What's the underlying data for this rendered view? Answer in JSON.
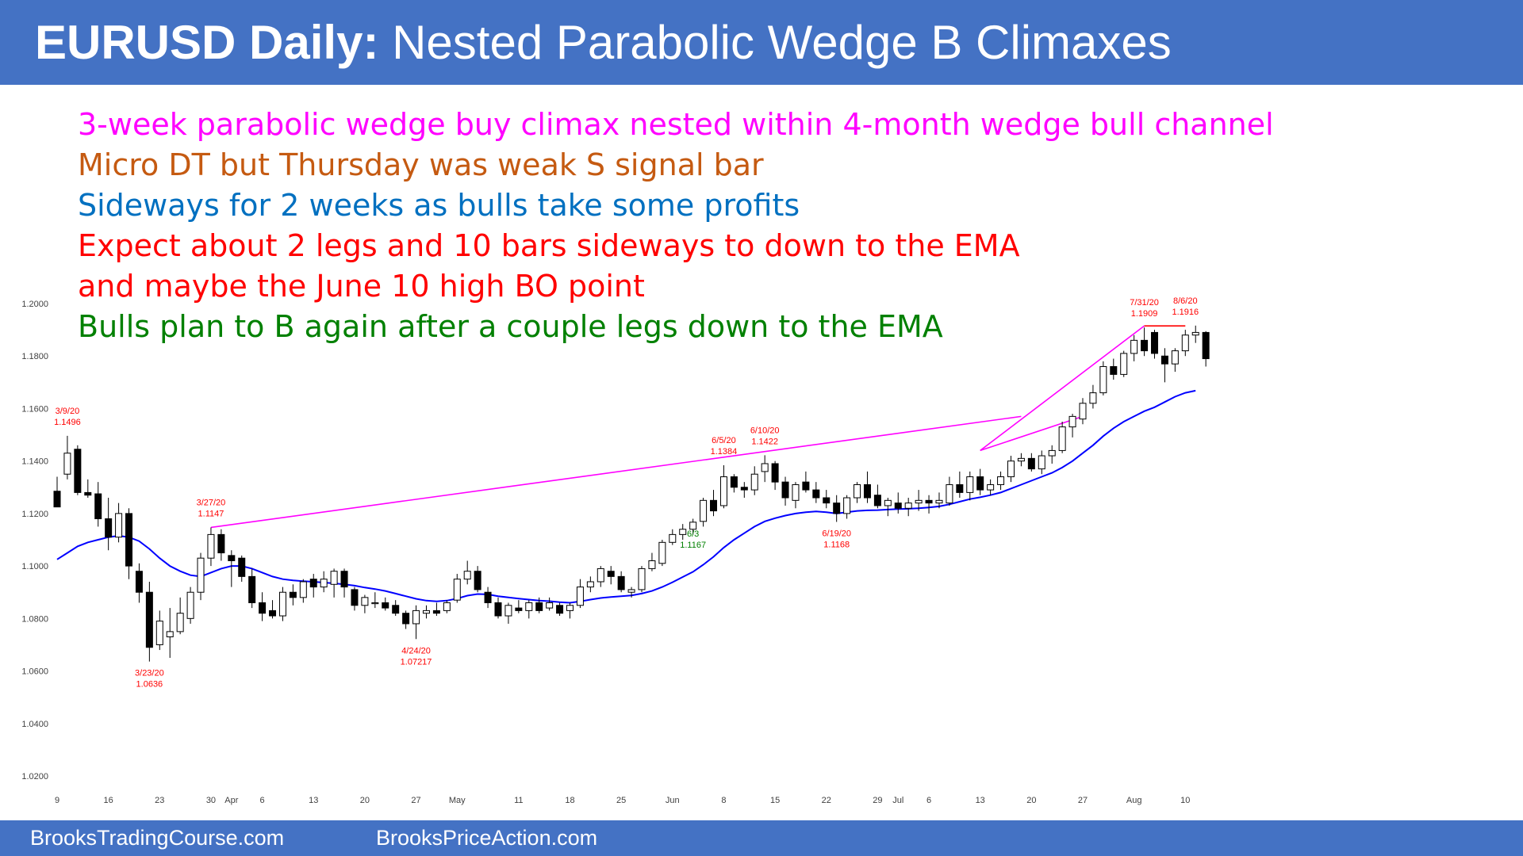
{
  "header": {
    "title_bold": "EURUSD Daily:",
    "title_rest": " Nested Parabolic Wedge B Climaxes",
    "background": "#4472c4"
  },
  "notes": [
    {
      "text": "3-week parabolic wedge buy climax nested within 4-month wedge bull channel",
      "color": "#ff00ff"
    },
    {
      "text": "Micro DT but Thursday was weak S signal bar",
      "color": "#c55a11"
    },
    {
      "text": "Sideways for 2 weeks as bulls take some profits",
      "color": "#0070c0"
    },
    {
      "text": "Expect about 2 legs and 10 bars sideways to down to the EMA",
      "color": "#ff0000"
    },
    {
      "text": "and maybe the June 10 high BO point",
      "color": "#ff0000"
    },
    {
      "text": "Bulls plan to B again after a couple legs down to the EMA",
      "color": "#008000"
    }
  ],
  "footer": {
    "left": "BrooksTradingCourse.com",
    "right": "BrooksPriceAction.com"
  },
  "chart_data": {
    "type": "candlestick",
    "ylim": [
      1.02,
      1.2
    ],
    "y_ticks": [
      "1.2000",
      "1.1800",
      "1.1600",
      "1.1400",
      "1.1200",
      "1.1000",
      "1.0800",
      "1.0600",
      "1.0400",
      "1.0200"
    ],
    "x_ticks": [
      {
        "label": "9",
        "bar": 0
      },
      {
        "label": "16",
        "bar": 5
      },
      {
        "label": "23",
        "bar": 10
      },
      {
        "label": "30",
        "bar": 15
      },
      {
        "label": "Apr",
        "bar": 17
      },
      {
        "label": "6",
        "bar": 20
      },
      {
        "label": "13",
        "bar": 25
      },
      {
        "label": "20",
        "bar": 30
      },
      {
        "label": "27",
        "bar": 35
      },
      {
        "label": "May",
        "bar": 39
      },
      {
        "label": "11",
        "bar": 45
      },
      {
        "label": "18",
        "bar": 50
      },
      {
        "label": "25",
        "bar": 55
      },
      {
        "label": "Jun",
        "bar": 60
      },
      {
        "label": "8",
        "bar": 65
      },
      {
        "label": "15",
        "bar": 70
      },
      {
        "label": "22",
        "bar": 75
      },
      {
        "label": "29",
        "bar": 80
      },
      {
        "label": "Jul",
        "bar": 82
      },
      {
        "label": "6",
        "bar": 85
      },
      {
        "label": "13",
        "bar": 90
      },
      {
        "label": "20",
        "bar": 95
      },
      {
        "label": "27",
        "bar": 100
      },
      {
        "label": "Aug",
        "bar": 105
      },
      {
        "label": "10",
        "bar": 110
      }
    ],
    "candles": [
      [
        1.1285,
        1.134,
        1.1225,
        1.1225
      ],
      [
        1.135,
        1.1496,
        1.133,
        1.143
      ],
      [
        1.1445,
        1.146,
        1.127,
        1.128
      ],
      [
        1.128,
        1.133,
        1.126,
        1.127
      ],
      [
        1.1275,
        1.132,
        1.115,
        1.118
      ],
      [
        1.118,
        1.126,
        1.106,
        1.111
      ],
      [
        1.111,
        1.124,
        1.109,
        1.12
      ],
      [
        1.12,
        1.122,
        1.095,
        1.1
      ],
      [
        1.098,
        1.101,
        1.086,
        1.09
      ],
      [
        1.09,
        1.094,
        1.0636,
        1.069
      ],
      [
        1.07,
        1.083,
        1.068,
        1.079
      ],
      [
        1.073,
        1.084,
        1.065,
        1.075
      ],
      [
        1.075,
        1.088,
        1.074,
        1.082
      ],
      [
        1.08,
        1.092,
        1.078,
        1.09
      ],
      [
        1.09,
        1.105,
        1.087,
        1.103
      ],
      [
        1.103,
        1.1147,
        1.1,
        1.112
      ],
      [
        1.112,
        1.114,
        1.102,
        1.105
      ],
      [
        1.104,
        1.106,
        1.092,
        1.102
      ],
      [
        1.103,
        1.104,
        1.094,
        1.096
      ],
      [
        1.096,
        1.099,
        1.084,
        1.086
      ],
      [
        1.086,
        1.09,
        1.079,
        1.082
      ],
      [
        1.083,
        1.087,
        1.08,
        1.081
      ],
      [
        1.081,
        1.092,
        1.079,
        1.09
      ],
      [
        1.09,
        1.093,
        1.085,
        1.088
      ],
      [
        1.088,
        1.095,
        1.086,
        1.094
      ],
      [
        1.095,
        1.097,
        1.088,
        1.092
      ],
      [
        1.092,
        1.098,
        1.09,
        1.095
      ],
      [
        1.093,
        1.099,
        1.088,
        1.098
      ],
      [
        1.098,
        1.099,
        1.088,
        1.092
      ],
      [
        1.091,
        1.092,
        1.083,
        1.085
      ],
      [
        1.085,
        1.089,
        1.082,
        1.088
      ],
      [
        1.086,
        1.09,
        1.084,
        1.086
      ],
      [
        1.086,
        1.088,
        1.083,
        1.084
      ],
      [
        1.085,
        1.087,
        1.081,
        1.082
      ],
      [
        1.082,
        1.083,
        1.076,
        1.078
      ],
      [
        1.078,
        1.085,
        1.07217,
        1.083
      ],
      [
        1.082,
        1.085,
        1.08,
        1.083
      ],
      [
        1.083,
        1.086,
        1.081,
        1.082
      ],
      [
        1.083,
        1.087,
        1.082,
        1.086
      ],
      [
        1.087,
        1.097,
        1.086,
        1.095
      ],
      [
        1.095,
        1.102,
        1.093,
        1.098
      ],
      [
        1.098,
        1.1,
        1.09,
        1.091
      ],
      [
        1.09,
        1.092,
        1.084,
        1.086
      ],
      [
        1.086,
        1.088,
        1.08,
        1.081
      ],
      [
        1.081,
        1.086,
        1.078,
        1.085
      ],
      [
        1.084,
        1.087,
        1.082,
        1.083
      ],
      [
        1.083,
        1.087,
        1.08,
        1.086
      ],
      [
        1.086,
        1.088,
        1.082,
        1.083
      ],
      [
        1.084,
        1.088,
        1.083,
        1.086
      ],
      [
        1.085,
        1.086,
        1.081,
        1.082
      ],
      [
        1.083,
        1.086,
        1.08,
        1.085
      ],
      [
        1.085,
        1.095,
        1.084,
        1.092
      ],
      [
        1.092,
        1.096,
        1.09,
        1.094
      ],
      [
        1.094,
        1.1,
        1.092,
        1.099
      ],
      [
        1.098,
        1.1,
        1.093,
        1.096
      ],
      [
        1.096,
        1.098,
        1.09,
        1.091
      ],
      [
        1.09,
        1.092,
        1.088,
        1.091
      ],
      [
        1.091,
        1.1,
        1.09,
        1.099
      ],
      [
        1.099,
        1.105,
        1.098,
        1.102
      ],
      [
        1.101,
        1.11,
        1.1,
        1.109
      ],
      [
        1.109,
        1.114,
        1.108,
        1.112
      ],
      [
        1.112,
        1.116,
        1.11,
        1.114
      ],
      [
        1.114,
        1.118,
        1.112,
        1.1167
      ],
      [
        1.117,
        1.126,
        1.115,
        1.125
      ],
      [
        1.125,
        1.129,
        1.119,
        1.121
      ],
      [
        1.123,
        1.1384,
        1.122,
        1.134
      ],
      [
        1.134,
        1.135,
        1.128,
        1.13
      ],
      [
        1.13,
        1.132,
        1.126,
        1.129
      ],
      [
        1.129,
        1.138,
        1.127,
        1.135
      ],
      [
        1.136,
        1.1422,
        1.132,
        1.139
      ],
      [
        1.139,
        1.14,
        1.129,
        1.132
      ],
      [
        1.132,
        1.134,
        1.123,
        1.126
      ],
      [
        1.125,
        1.132,
        1.122,
        1.131
      ],
      [
        1.132,
        1.136,
        1.128,
        1.129
      ],
      [
        1.129,
        1.132,
        1.124,
        1.126
      ],
      [
        1.126,
        1.129,
        1.122,
        1.124
      ],
      [
        1.124,
        1.127,
        1.1168,
        1.12
      ],
      [
        1.12,
        1.127,
        1.118,
        1.126
      ],
      [
        1.126,
        1.132,
        1.124,
        1.131
      ],
      [
        1.131,
        1.136,
        1.124,
        1.126
      ],
      [
        1.127,
        1.131,
        1.122,
        1.123
      ],
      [
        1.123,
        1.126,
        1.119,
        1.125
      ],
      [
        1.124,
        1.128,
        1.12,
        1.122
      ],
      [
        1.122,
        1.126,
        1.119,
        1.124
      ],
      [
        1.124,
        1.129,
        1.121,
        1.125
      ],
      [
        1.125,
        1.127,
        1.12,
        1.124
      ],
      [
        1.124,
        1.128,
        1.122,
        1.125
      ],
      [
        1.124,
        1.134,
        1.123,
        1.131
      ],
      [
        1.131,
        1.136,
        1.126,
        1.128
      ],
      [
        1.128,
        1.136,
        1.125,
        1.134
      ],
      [
        1.134,
        1.137,
        1.127,
        1.129
      ],
      [
        1.129,
        1.133,
        1.127,
        1.131
      ],
      [
        1.131,
        1.136,
        1.129,
        1.134
      ],
      [
        1.134,
        1.142,
        1.132,
        1.14
      ],
      [
        1.14,
        1.143,
        1.138,
        1.141
      ],
      [
        1.141,
        1.143,
        1.136,
        1.137
      ],
      [
        1.137,
        1.144,
        1.135,
        1.142
      ],
      [
        1.142,
        1.146,
        1.139,
        1.144
      ],
      [
        1.144,
        1.155,
        1.143,
        1.153
      ],
      [
        1.153,
        1.158,
        1.149,
        1.157
      ],
      [
        1.156,
        1.164,
        1.154,
        1.162
      ],
      [
        1.162,
        1.169,
        1.16,
        1.166
      ],
      [
        1.166,
        1.178,
        1.165,
        1.176
      ],
      [
        1.176,
        1.179,
        1.171,
        1.173
      ],
      [
        1.173,
        1.182,
        1.172,
        1.181
      ],
      [
        1.181,
        1.188,
        1.178,
        1.186
      ],
      [
        1.186,
        1.1909,
        1.18,
        1.182
      ],
      [
        1.189,
        1.19,
        1.179,
        1.181
      ],
      [
        1.18,
        1.183,
        1.17,
        1.177
      ],
      [
        1.177,
        1.183,
        1.174,
        1.182
      ],
      [
        1.182,
        1.19,
        1.18,
        1.188
      ],
      [
        1.188,
        1.1916,
        1.185,
        1.189
      ],
      [
        1.189,
        1.1895,
        1.176,
        1.179
      ]
    ],
    "ema": [
      [
        0,
        1.1025
      ],
      [
        1,
        1.105
      ],
      [
        2,
        1.1075
      ],
      [
        3,
        1.109
      ],
      [
        4,
        1.11
      ],
      [
        5,
        1.111
      ],
      [
        6,
        1.1115
      ],
      [
        7,
        1.111
      ],
      [
        8,
        1.1095
      ],
      [
        9,
        1.1065
      ],
      [
        10,
        1.103
      ],
      [
        11,
        1.1
      ],
      [
        12,
        1.098
      ],
      [
        13,
        1.0965
      ],
      [
        14,
        1.096
      ],
      [
        15,
        1.0975
      ],
      [
        16,
        1.099
      ],
      [
        17,
        1.1
      ],
      [
        18,
        1.1
      ],
      [
        19,
        1.099
      ],
      [
        20,
        1.0975
      ],
      [
        21,
        1.096
      ],
      [
        22,
        1.095
      ],
      [
        23,
        1.0945
      ],
      [
        24,
        1.0942
      ],
      [
        25,
        1.094
      ],
      [
        26,
        1.0937
      ],
      [
        27,
        1.0934
      ],
      [
        28,
        1.093
      ],
      [
        29,
        1.0925
      ],
      [
        30,
        1.0918
      ],
      [
        31,
        1.0912
      ],
      [
        32,
        1.0905
      ],
      [
        33,
        1.0895
      ],
      [
        34,
        1.0885
      ],
      [
        35,
        1.0875
      ],
      [
        36,
        1.0868
      ],
      [
        37,
        1.0865
      ],
      [
        38,
        1.0868
      ],
      [
        39,
        1.0876
      ],
      [
        40,
        1.0887
      ],
      [
        41,
        1.0893
      ],
      [
        42,
        1.0892
      ],
      [
        43,
        1.0885
      ],
      [
        44,
        1.088
      ],
      [
        45,
        1.0876
      ],
      [
        46,
        1.0872
      ],
      [
        47,
        1.0868
      ],
      [
        48,
        1.0866
      ],
      [
        49,
        1.0862
      ],
      [
        50,
        1.086
      ],
      [
        51,
        1.0865
      ],
      [
        52,
        1.0872
      ],
      [
        53,
        1.0878
      ],
      [
        54,
        1.0882
      ],
      [
        55,
        1.0885
      ],
      [
        56,
        1.0888
      ],
      [
        57,
        1.0895
      ],
      [
        58,
        1.0905
      ],
      [
        59,
        1.092
      ],
      [
        60,
        1.0938
      ],
      [
        61,
        1.0958
      ],
      [
        62,
        1.0978
      ],
      [
        63,
        1.1005
      ],
      [
        64,
        1.1035
      ],
      [
        65,
        1.107
      ],
      [
        66,
        1.11
      ],
      [
        67,
        1.1125
      ],
      [
        68,
        1.115
      ],
      [
        69,
        1.117
      ],
      [
        70,
        1.1182
      ],
      [
        71,
        1.1192
      ],
      [
        72,
        1.12
      ],
      [
        73,
        1.1205
      ],
      [
        74,
        1.1208
      ],
      [
        75,
        1.1205
      ],
      [
        76,
        1.12
      ],
      [
        77,
        1.1205
      ],
      [
        78,
        1.121
      ],
      [
        79,
        1.1212
      ],
      [
        80,
        1.1213
      ],
      [
        81,
        1.1215
      ],
      [
        82,
        1.1217
      ],
      [
        83,
        1.1218
      ],
      [
        84,
        1.122
      ],
      [
        85,
        1.1223
      ],
      [
        86,
        1.1227
      ],
      [
        87,
        1.1235
      ],
      [
        88,
        1.1245
      ],
      [
        89,
        1.1255
      ],
      [
        90,
        1.1262
      ],
      [
        91,
        1.127
      ],
      [
        92,
        1.128
      ],
      [
        93,
        1.1295
      ],
      [
        94,
        1.131
      ],
      [
        95,
        1.1325
      ],
      [
        96,
        1.134
      ],
      [
        97,
        1.1355
      ],
      [
        98,
        1.1375
      ],
      [
        99,
        1.14
      ],
      [
        100,
        1.143
      ],
      [
        101,
        1.146
      ],
      [
        102,
        1.1495
      ],
      [
        103,
        1.1525
      ],
      [
        104,
        1.155
      ],
      [
        105,
        1.157
      ],
      [
        106,
        1.159
      ],
      [
        107,
        1.1605
      ],
      [
        108,
        1.1625
      ],
      [
        109,
        1.1645
      ],
      [
        110,
        1.166
      ],
      [
        111,
        1.1668
      ]
    ],
    "ema_color": "#0000ff",
    "bull_color": "#ffffff",
    "bear_color": "#000000",
    "trendlines": [
      {
        "from": [
          15,
          1.1147
        ],
        "to": [
          94,
          1.157
        ],
        "color": "#ff00ff"
      },
      {
        "from": [
          90,
          1.144
        ],
        "to": [
          100,
          1.157
        ],
        "color": "#ff00ff"
      },
      {
        "from": [
          90,
          1.144
        ],
        "to": [
          106,
          1.1915
        ],
        "color": "#ff00ff"
      },
      {
        "from": [
          106,
          1.1915
        ],
        "to": [
          110,
          1.1915
        ],
        "color": "#ff0000"
      }
    ],
    "annotations": [
      {
        "date": "3/9/20",
        "price": "1.1496",
        "bar": 1,
        "y": 1.1496,
        "pos": "above",
        "color": "#ff0000"
      },
      {
        "date": "3/27/20",
        "price": "1.1147",
        "bar": 15,
        "y": 1.1147,
        "pos": "above",
        "color": "#ff0000"
      },
      {
        "date": "3/23/20",
        "price": "1.0636",
        "bar": 9,
        "y": 1.0636,
        "pos": "below",
        "color": "#ff0000"
      },
      {
        "date": "4/24/20",
        "price": "1.07217",
        "bar": 35,
        "y": 1.07217,
        "pos": "below",
        "color": "#ff0000"
      },
      {
        "date": "6/3",
        "price": "1.1167",
        "bar": 62,
        "y": 1.1167,
        "pos": "below",
        "color": "#008000"
      },
      {
        "date": "6/5/20",
        "price": "1.1384",
        "bar": 65,
        "y": 1.1384,
        "pos": "above",
        "color": "#ff0000"
      },
      {
        "date": "6/10/20",
        "price": "1.1422",
        "bar": 69,
        "y": 1.1422,
        "pos": "above",
        "color": "#ff0000"
      },
      {
        "date": "6/19/20",
        "price": "1.1168",
        "bar": 76,
        "y": 1.1168,
        "pos": "below",
        "color": "#ff0000"
      },
      {
        "date": "7/31/20",
        "price": "1.1909",
        "bar": 106,
        "y": 1.1909,
        "pos": "above",
        "color": "#ff0000"
      },
      {
        "date": "8/6/20",
        "price": "1.1916",
        "bar": 110,
        "y": 1.1916,
        "pos": "above",
        "color": "#ff0000"
      }
    ]
  }
}
